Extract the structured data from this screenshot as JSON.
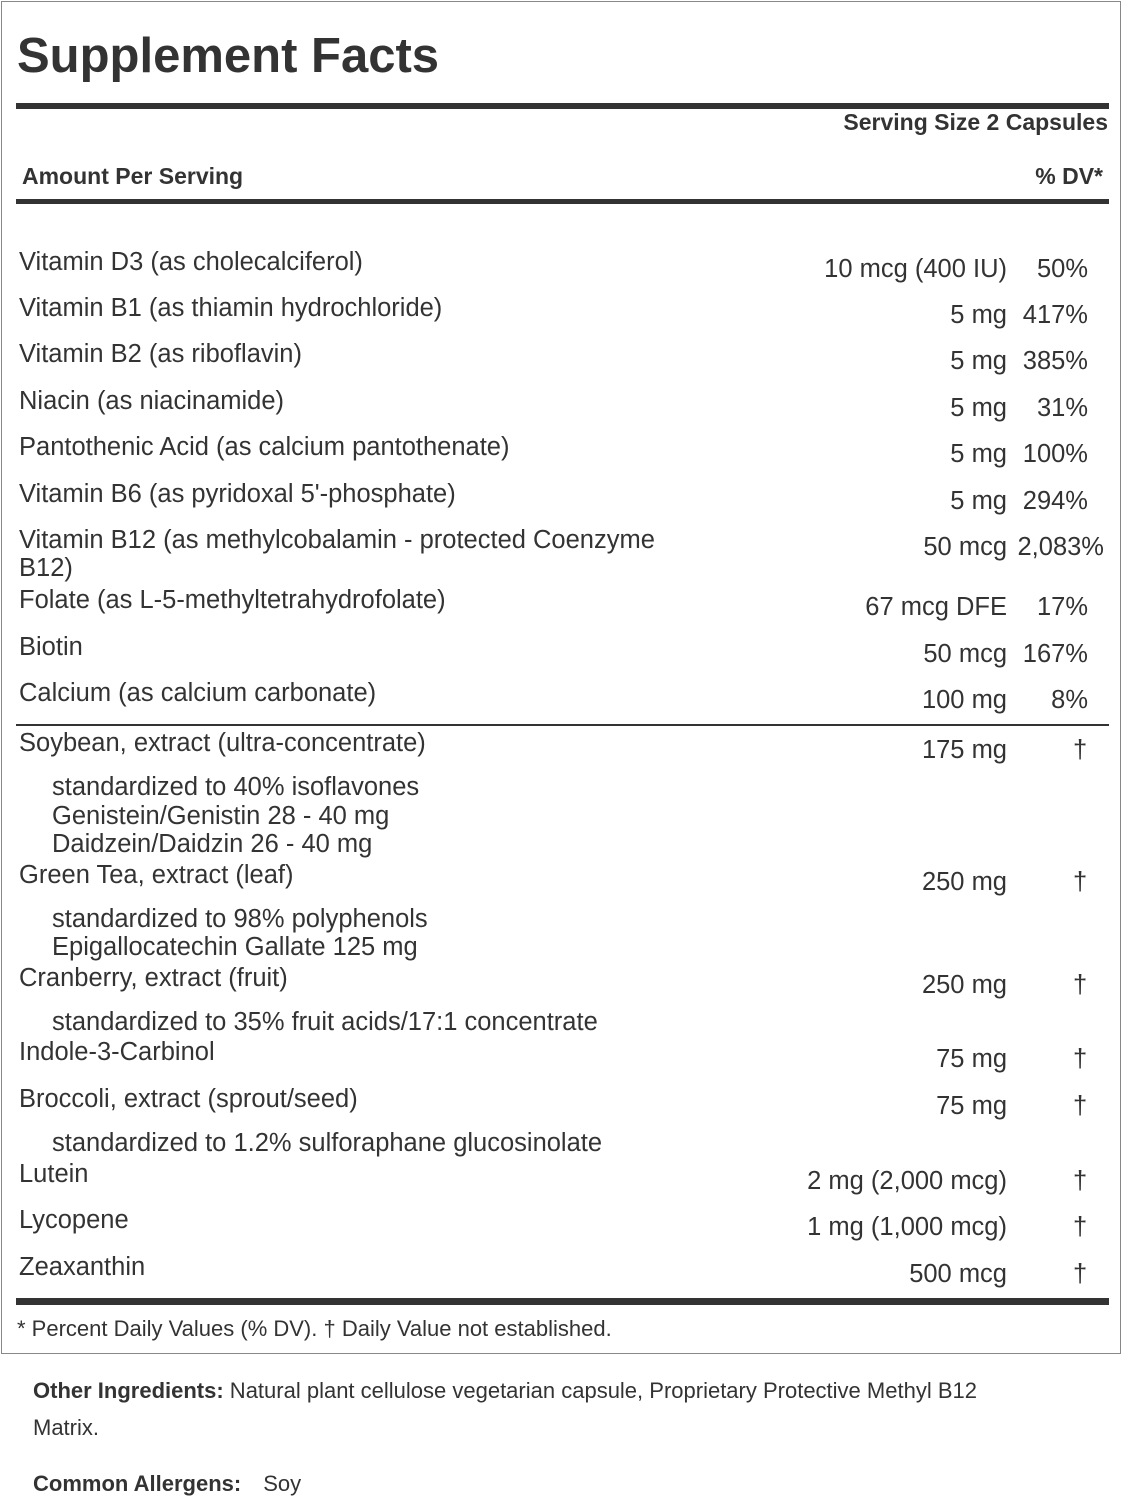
{
  "title": "Supplement Facts",
  "serving_size": "Serving Size 2 Capsules",
  "amount_per_serving": "Amount Per Serving",
  "dv_header": "% DV*",
  "vitamins": [
    {
      "name": "Vitamin D3 (as cholecalciferol)",
      "amount": "10 mcg (400 IU)",
      "dv": "50%"
    },
    {
      "name": "Vitamin B1 (as thiamin hydrochloride)",
      "amount": "5 mg",
      "dv": "417%"
    },
    {
      "name": "Vitamin B2 (as riboflavin)",
      "amount": "5 mg",
      "dv": "385%"
    },
    {
      "name": "Niacin (as niacinamide)",
      "amount": "5 mg",
      "dv": "31%"
    },
    {
      "name": "Pantothenic Acid (as calcium pantothenate)",
      "amount": "5 mg",
      "dv": "100%"
    },
    {
      "name": "Vitamin B6 (as pyridoxal 5'-phosphate)",
      "amount": "5 mg",
      "dv": "294%"
    },
    {
      "name": "Vitamin B12 (as methylcobalamin - protected Coenzyme",
      "name_cont": "B12)",
      "amount": "50 mcg",
      "dv": "2,083%"
    },
    {
      "name": "Folate (as L-5-methyltetrahydrofolate)",
      "amount": "67 mcg DFE",
      "dv": "17%"
    },
    {
      "name": "Biotin",
      "amount": "50 mcg",
      "dv": "167%"
    },
    {
      "name": "Calcium (as calcium carbonate)",
      "amount": "100 mg",
      "dv": "8%"
    }
  ],
  "others": [
    {
      "name": "Soybean, extract (ultra-concentrate)",
      "amount": "175 mg",
      "dv": "†",
      "sub": [
        "standardized to 40% isoflavones",
        "Genistein/Genistin   28 - 40 mg",
        "Daidzein/Daidzin   26 - 40 mg"
      ]
    },
    {
      "name": "Green Tea, extract (leaf)",
      "amount": "250 mg",
      "dv": "†",
      "sub": [
        "standardized to 98% polyphenols",
        "Epigallocatechin Gallate    125 mg"
      ]
    },
    {
      "name": "Cranberry, extract (fruit)",
      "amount": "250 mg",
      "dv": "†",
      "sub": [
        "standardized to 35% fruit acids/17:1 concentrate"
      ]
    },
    {
      "name": "Indole-3-Carbinol",
      "amount": "75 mg",
      "dv": "†",
      "sub": []
    },
    {
      "name": "Broccoli, extract (sprout/seed)",
      "amount": "75 mg",
      "dv": "†",
      "sub": [
        "standardized to 1.2% sulforaphane glucosinolate"
      ]
    },
    {
      "name": "Lutein",
      "amount": "2 mg (2,000 mcg)",
      "dv": "†",
      "sub": []
    },
    {
      "name": "Lycopene",
      "amount": "1 mg (1,000 mcg)",
      "dv": "†",
      "sub": []
    },
    {
      "name": "Zeaxanthin",
      "amount": "500 mcg",
      "dv": "†",
      "sub": []
    }
  ],
  "footnote": "* Percent Daily Values (% DV). † Daily Value not established.",
  "other_ingredients": {
    "label": "Other Ingredients:",
    "text": " Natural plant cellulose vegetarian capsule, Proprietary Protective Methyl B12",
    "text_cont": "Matrix."
  },
  "allergens": {
    "label": "Common Allergens:",
    "text": "Soy"
  }
}
